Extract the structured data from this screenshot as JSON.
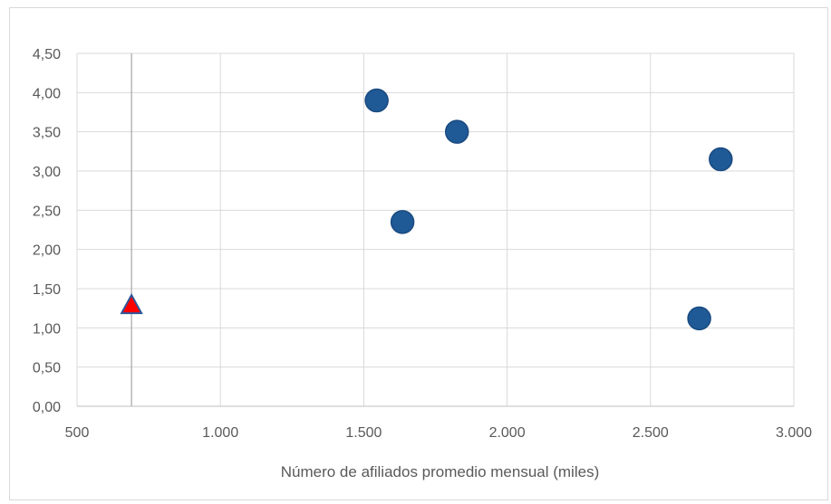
{
  "chart_data": {
    "type": "scatter",
    "title": "",
    "xlabel": "Número de afiliados promedio mensual (miles)",
    "ylabel": "",
    "xlim": [
      500,
      3000
    ],
    "ylim": [
      0,
      4.5
    ],
    "x_ticks": [
      500,
      1000,
      1500,
      2000,
      2500,
      3000
    ],
    "x_tick_labels": [
      "500",
      "1.000",
      "1.500",
      "2.000",
      "2.500",
      "3.000"
    ],
    "y_ticks": [
      0,
      0.5,
      1,
      1.5,
      2,
      2.5,
      3,
      3.5,
      4,
      4.5
    ],
    "y_tick_labels": [
      "0,00",
      "0,50",
      "1,00",
      "1,50",
      "2,00",
      "2,50",
      "3,00",
      "3,50",
      "4,00",
      "4,50"
    ],
    "grid": true,
    "legend": "none",
    "reference_line_x": 690,
    "series": [
      {
        "marker": "circle",
        "color": "#1f5a96",
        "points": [
          {
            "x": 1545,
            "y": 3.9
          },
          {
            "x": 1825,
            "y": 3.5
          },
          {
            "x": 1635,
            "y": 2.35
          },
          {
            "x": 2745,
            "y": 3.15
          },
          {
            "x": 2670,
            "y": 1.12
          }
        ]
      },
      {
        "marker": "triangle",
        "color": "#ff0000",
        "edge_color": "#2e5597",
        "points": [
          {
            "x": 690,
            "y": 1.28
          }
        ]
      }
    ]
  }
}
